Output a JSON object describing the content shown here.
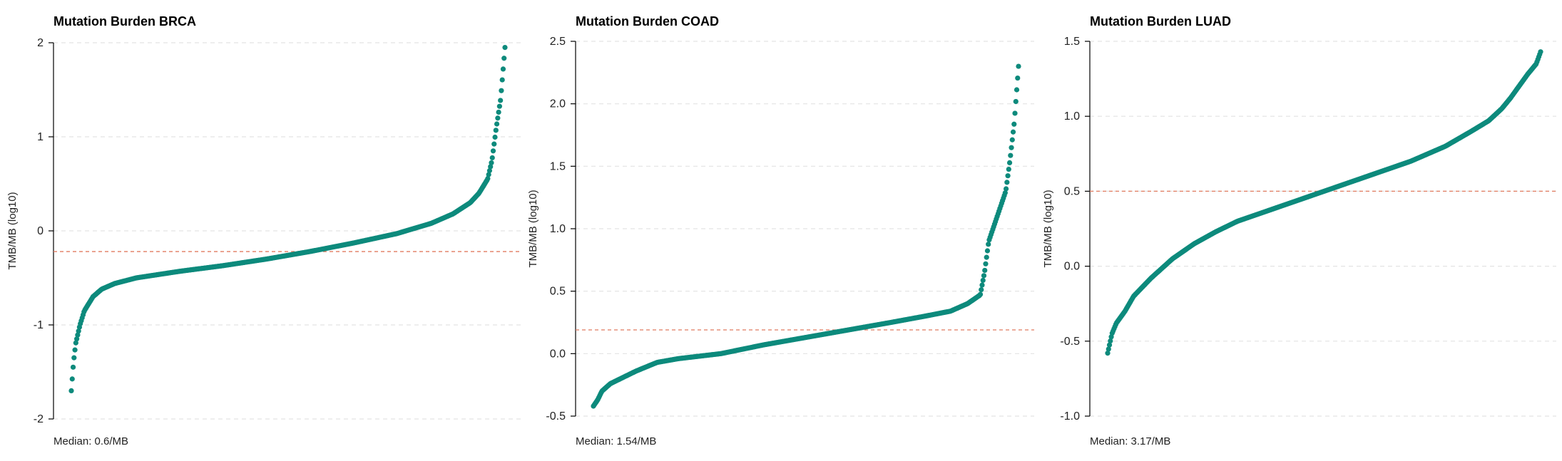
{
  "chart_data": [
    {
      "type": "scatter",
      "title": "Mutation Burden BRCA",
      "ylabel": "TMB/MB (log10)",
      "caption": "Median: 0.6/MB",
      "ylim": [
        -2,
        2
      ],
      "yticks": [
        "-2",
        "-1",
        "0",
        "1",
        "2"
      ],
      "ytick_values": [
        -2,
        -1,
        0,
        1,
        2
      ],
      "median_log10": -0.22,
      "grid": "dashed horizontal",
      "color": "#0d8a7c",
      "median_line_color": "#e07a5f",
      "curve": [
        [
          0.0,
          -1.7
        ],
        [
          0.005,
          -1.4
        ],
        [
          0.01,
          -1.2
        ],
        [
          0.02,
          -1.0
        ],
        [
          0.03,
          -0.85
        ],
        [
          0.05,
          -0.7
        ],
        [
          0.07,
          -0.62
        ],
        [
          0.1,
          -0.56
        ],
        [
          0.15,
          -0.5
        ],
        [
          0.25,
          -0.43
        ],
        [
          0.35,
          -0.37
        ],
        [
          0.45,
          -0.3
        ],
        [
          0.55,
          -0.22
        ],
        [
          0.65,
          -0.13
        ],
        [
          0.75,
          -0.03
        ],
        [
          0.83,
          0.08
        ],
        [
          0.88,
          0.18
        ],
        [
          0.92,
          0.3
        ],
        [
          0.94,
          0.4
        ],
        [
          0.96,
          0.55
        ],
        [
          0.97,
          0.75
        ],
        [
          0.98,
          1.1
        ],
        [
          0.99,
          1.4
        ],
        [
          1.0,
          1.95
        ]
      ]
    },
    {
      "type": "scatter",
      "title": "Mutation Burden COAD",
      "ylabel": "TMB/MB (log10)",
      "caption": "Median: 1.54/MB",
      "ylim": [
        -0.5,
        2.5
      ],
      "yticks": [
        "-0.5",
        "0.0",
        "0.5",
        "1.0",
        "1.5",
        "2.0",
        "2.5"
      ],
      "ytick_values": [
        -0.5,
        0,
        0.5,
        1,
        1.5,
        2,
        2.5
      ],
      "median_log10": 0.19,
      "grid": "dashed horizontal",
      "color": "#0d8a7c",
      "median_line_color": "#e07a5f",
      "curve": [
        [
          0.0,
          -0.42
        ],
        [
          0.01,
          -0.37
        ],
        [
          0.02,
          -0.3
        ],
        [
          0.04,
          -0.24
        ],
        [
          0.07,
          -0.19
        ],
        [
          0.1,
          -0.14
        ],
        [
          0.15,
          -0.07
        ],
        [
          0.2,
          -0.04
        ],
        [
          0.3,
          0.0
        ],
        [
          0.4,
          0.07
        ],
        [
          0.5,
          0.13
        ],
        [
          0.6,
          0.19
        ],
        [
          0.7,
          0.25
        ],
        [
          0.78,
          0.3
        ],
        [
          0.84,
          0.34
        ],
        [
          0.88,
          0.4
        ],
        [
          0.91,
          0.47
        ],
        [
          0.92,
          0.65
        ],
        [
          0.93,
          0.9
        ],
        [
          0.95,
          1.1
        ],
        [
          0.97,
          1.3
        ],
        [
          0.98,
          1.55
        ],
        [
          0.99,
          1.85
        ],
        [
          1.0,
          2.3
        ]
      ]
    },
    {
      "type": "scatter",
      "title": "Mutation Burden LUAD",
      "ylabel": "TMB/MB (log10)",
      "caption": "Median: 3.17/MB",
      "ylim": [
        -1.0,
        1.5
      ],
      "yticks": [
        "-1.0",
        "-0.5",
        "0.0",
        "0.5",
        "1.0",
        "1.5"
      ],
      "ytick_values": [
        -1,
        -0.5,
        0,
        0.5,
        1,
        1.5
      ],
      "median_log10": 0.5,
      "grid": "dashed horizontal",
      "color": "#0d8a7c",
      "median_line_color": "#e07a5f",
      "curve": [
        [
          0.0,
          -0.58
        ],
        [
          0.01,
          -0.45
        ],
        [
          0.02,
          -0.38
        ],
        [
          0.04,
          -0.3
        ],
        [
          0.06,
          -0.2
        ],
        [
          0.1,
          -0.08
        ],
        [
          0.15,
          0.05
        ],
        [
          0.2,
          0.15
        ],
        [
          0.25,
          0.23
        ],
        [
          0.3,
          0.3
        ],
        [
          0.4,
          0.4
        ],
        [
          0.5,
          0.5
        ],
        [
          0.6,
          0.6
        ],
        [
          0.7,
          0.7
        ],
        [
          0.78,
          0.8
        ],
        [
          0.84,
          0.9
        ],
        [
          0.88,
          0.97
        ],
        [
          0.91,
          1.05
        ],
        [
          0.93,
          1.12
        ],
        [
          0.95,
          1.2
        ],
        [
          0.97,
          1.28
        ],
        [
          0.99,
          1.35
        ],
        [
          1.0,
          1.43
        ]
      ]
    }
  ]
}
